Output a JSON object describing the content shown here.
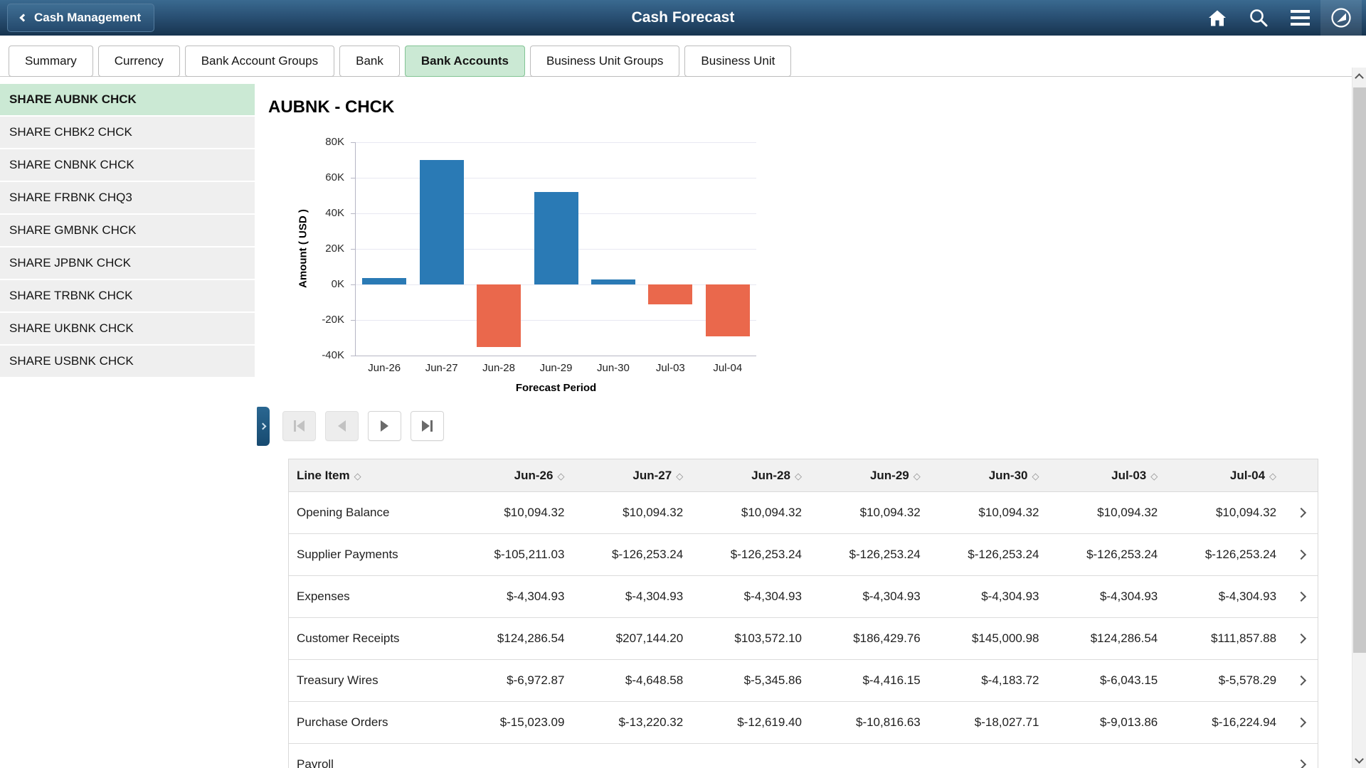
{
  "header": {
    "back_label": "Cash Management",
    "title": "Cash Forecast",
    "icons": [
      {
        "name": "home-icon"
      },
      {
        "name": "search-icon"
      },
      {
        "name": "menu-icon"
      },
      {
        "name": "navbar-compass-icon"
      }
    ]
  },
  "tabs": {
    "items": [
      "Summary",
      "Currency",
      "Bank Account Groups",
      "Bank",
      "Bank Accounts",
      "Business Unit Groups",
      "Business Unit"
    ],
    "active_index": 4
  },
  "sidebar": {
    "items": [
      "SHARE AUBNK CHCK",
      "SHARE CHBK2 CHCK",
      "SHARE CNBNK CHCK",
      "SHARE FRBNK CHQ3",
      "SHARE GMBNK CHCK",
      "SHARE JPBNK CHCK",
      "SHARE TRBNK CHCK",
      "SHARE UKBNK CHCK",
      "SHARE USBNK CHCK"
    ],
    "selected_index": 0
  },
  "content": {
    "title": "AUBNK - CHCK"
  },
  "chart_data": {
    "type": "bar",
    "title": "AUBNK - CHCK",
    "categories": [
      "Jun-26",
      "Jun-27",
      "Jun-28",
      "Jun-29",
      "Jun-30",
      "Jul-03",
      "Jul-04"
    ],
    "values": [
      3500,
      70000,
      -35000,
      52000,
      3000,
      -11000,
      -29000
    ],
    "xlabel": "Forecast Period",
    "ylabel": "Amount ( USD )",
    "ylim": [
      -40000,
      80000
    ],
    "ytick_step": 20000,
    "ytick_labels": [
      "80K",
      "60K",
      "40K",
      "20K",
      "0K",
      "-20K",
      "-40K"
    ],
    "grid": true,
    "legend": "none",
    "positive_color": "#2a7ab5",
    "negative_color": "#ea684c"
  },
  "pagination": {
    "buttons": [
      {
        "name": "first",
        "enabled": false
      },
      {
        "name": "previous",
        "enabled": false
      },
      {
        "name": "next",
        "enabled": true
      },
      {
        "name": "last",
        "enabled": true
      }
    ]
  },
  "table": {
    "columns": [
      "Line Item",
      "Jun-26",
      "Jun-27",
      "Jun-28",
      "Jun-29",
      "Jun-30",
      "Jul-03",
      "Jul-04"
    ],
    "rows": [
      {
        "label": "Opening Balance",
        "values": [
          "$10,094.32",
          "$10,094.32",
          "$10,094.32",
          "$10,094.32",
          "$10,094.32",
          "$10,094.32",
          "$10,094.32"
        ]
      },
      {
        "label": "Supplier Payments",
        "values": [
          "$-105,211.03",
          "$-126,253.24",
          "$-126,253.24",
          "$-126,253.24",
          "$-126,253.24",
          "$-126,253.24",
          "$-126,253.24"
        ]
      },
      {
        "label": "Expenses",
        "values": [
          "$-4,304.93",
          "$-4,304.93",
          "$-4,304.93",
          "$-4,304.93",
          "$-4,304.93",
          "$-4,304.93",
          "$-4,304.93"
        ]
      },
      {
        "label": "Customer Receipts",
        "values": [
          "$124,286.54",
          "$207,144.20",
          "$103,572.10",
          "$186,429.76",
          "$145,000.98",
          "$124,286.54",
          "$111,857.88"
        ]
      },
      {
        "label": "Treasury Wires",
        "values": [
          "$-6,972.87",
          "$-4,648.58",
          "$-5,345.86",
          "$-4,416.15",
          "$-4,183.72",
          "$-6,043.15",
          "$-5,578.29"
        ]
      },
      {
        "label": "Purchase Orders",
        "values": [
          "$-15,023.09",
          "$-13,220.32",
          "$-12,619.40",
          "$-10,816.63",
          "$-18,027.71",
          "$-9,013.86",
          "$-16,224.94"
        ]
      },
      {
        "label": "Payroll",
        "values": [
          "",
          "",
          "",
          "",
          "",
          "",
          ""
        ]
      }
    ]
  },
  "colors": {
    "header_top": "#3a6a90",
    "header_bottom": "#17344f",
    "active_green": "#cbe9d4",
    "bar_positive": "#2a7ab5",
    "bar_negative": "#ea684c",
    "table_header_bg": "#f1f1f1"
  }
}
